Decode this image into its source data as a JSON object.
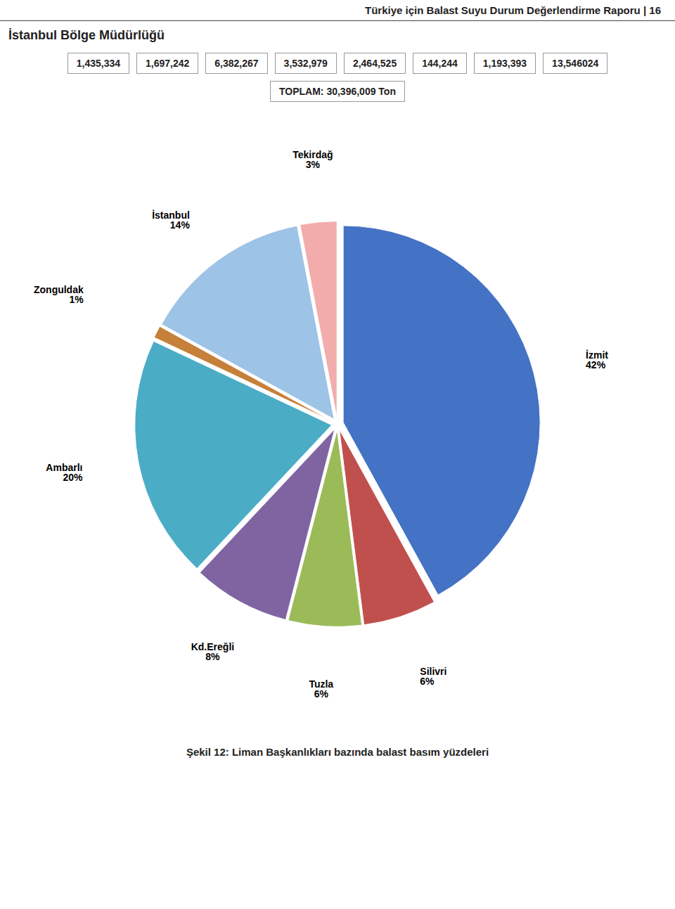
{
  "chart_data": {
    "type": "pie",
    "title": "İstanbul Bölge Müdürlüğü",
    "subtitle": "Türkiye için Balast Suyu Durum Değerlendirme Raporu | 16",
    "caption": "Şekil 12: Liman Başkanlıkları bazında balast basım yüzdeleri",
    "categories": [
      "İzmit",
      "Silivri",
      "Tuzla",
      "Kd.Ereğli",
      "Ambarlı",
      "Zonguldak",
      "İstanbul",
      "Tekirdağ"
    ],
    "values": [
      42,
      6,
      6,
      8,
      20,
      1,
      14,
      3
    ],
    "value_labels": [
      "42%",
      "6%",
      "6%",
      "8%",
      "20%",
      "1%",
      "14%",
      "3%"
    ],
    "colors": [
      "#4472C4",
      "#C0504D",
      "#9BBB59",
      "#8064A2",
      "#4BACC6",
      "#C6803A",
      "#9DC3E6",
      "#F2ACAC"
    ],
    "data_labels": true,
    "annotations": [
      "1,435,334",
      "1,697,242",
      "6,382,267",
      "3,532,979",
      "2,464,525",
      "144,244",
      "1,193,393",
      "13,546024",
      "TOPLAM:  30,396,009 Ton"
    ]
  }
}
